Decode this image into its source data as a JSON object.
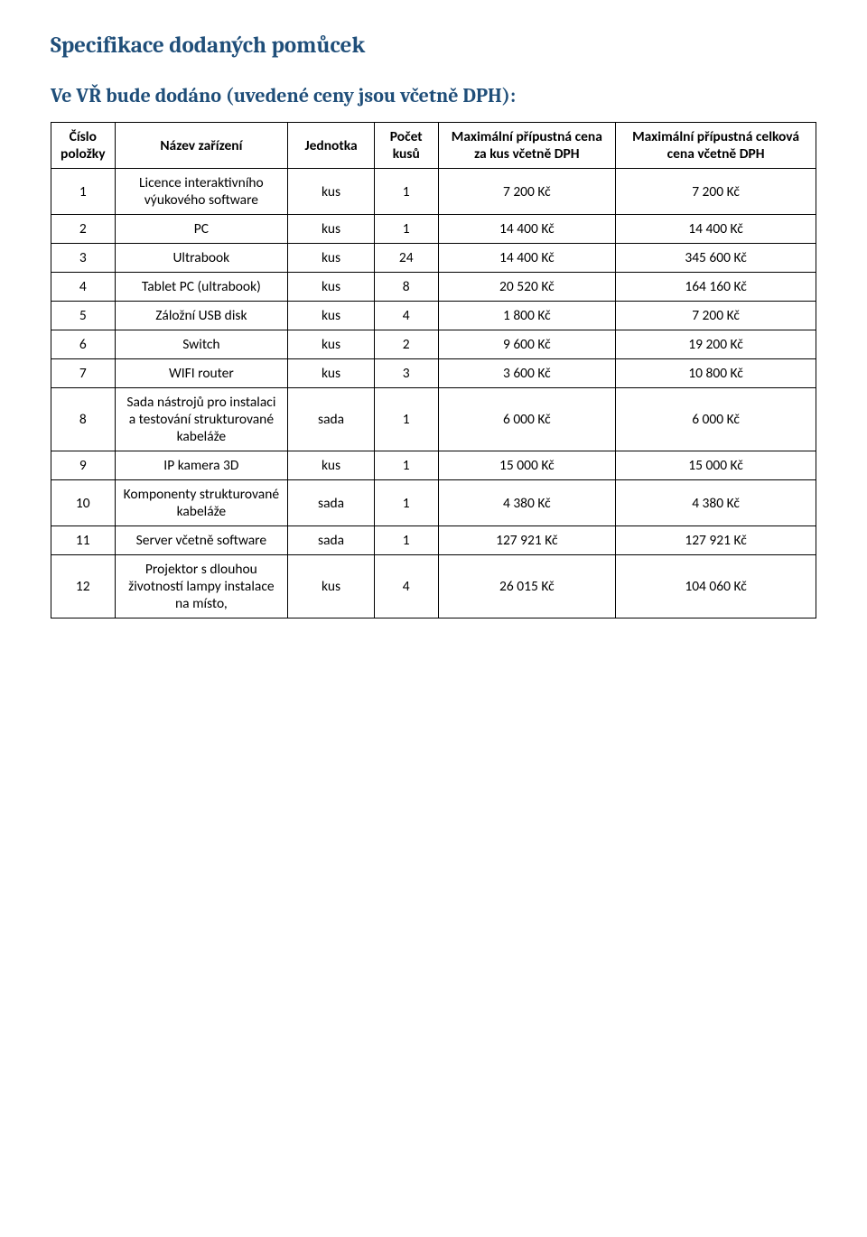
{
  "title": "Specifikace dodaných pomůcek",
  "subtitle": "Ve VŘ bude dodáno (uvedené ceny jsou včetně DPH):",
  "table": {
    "columns": [
      "Číslo položky",
      "Název zařízení",
      "Jednotka",
      "Počet kusů",
      "Maximální přípustná cena za kus včetně DPH",
      "Maximální přípustná celková cena včetně DPH"
    ],
    "rows": [
      {
        "num": "1",
        "name": "Licence interaktivního výukového software",
        "unit": "kus",
        "qty": "1",
        "price": "7 200 Kč",
        "total": "7 200 Kč"
      },
      {
        "num": "2",
        "name": "PC",
        "unit": "kus",
        "qty": "1",
        "price": "14 400 Kč",
        "total": "14 400 Kč"
      },
      {
        "num": "3",
        "name": "Ultrabook",
        "unit": "kus",
        "qty": "24",
        "price": "14 400 Kč",
        "total": "345 600 Kč"
      },
      {
        "num": "4",
        "name": "Tablet PC (ultrabook)",
        "unit": "kus",
        "qty": "8",
        "price": "20 520 Kč",
        "total": "164 160 Kč"
      },
      {
        "num": "5",
        "name": "Záložní USB disk",
        "unit": "kus",
        "qty": "4",
        "price": "1 800 Kč",
        "total": "7 200 Kč"
      },
      {
        "num": "6",
        "name": "Switch",
        "unit": "kus",
        "qty": "2",
        "price": "9 600 Kč",
        "total": "19 200 Kč"
      },
      {
        "num": "7",
        "name": "WIFI router",
        "unit": "kus",
        "qty": "3",
        "price": "3 600 Kč",
        "total": "10 800 Kč"
      },
      {
        "num": "8",
        "name": "Sada nástrojů pro instalaci a testování strukturované kabeláže",
        "unit": "sada",
        "qty": "1",
        "price": "6 000 Kč",
        "total": "6 000 Kč"
      },
      {
        "num": "9",
        "name": "IP kamera 3D",
        "unit": "kus",
        "qty": "1",
        "price": "15 000 Kč",
        "total": "15 000 Kč"
      },
      {
        "num": "10",
        "name": "Komponenty strukturované kabeláže",
        "unit": "sada",
        "qty": "1",
        "price": "4 380 Kč",
        "total": "4 380 Kč"
      },
      {
        "num": "11",
        "name": "Server včetně software",
        "unit": "sada",
        "qty": "1",
        "price": "127 921 Kč",
        "total": "127 921 Kč"
      },
      {
        "num": "12",
        "name": "Projektor s dlouhou životností lampy instalace na místo,",
        "unit": "kus",
        "qty": "4",
        "price": "26 015 Kč",
        "total": "104 060 Kč"
      }
    ]
  }
}
